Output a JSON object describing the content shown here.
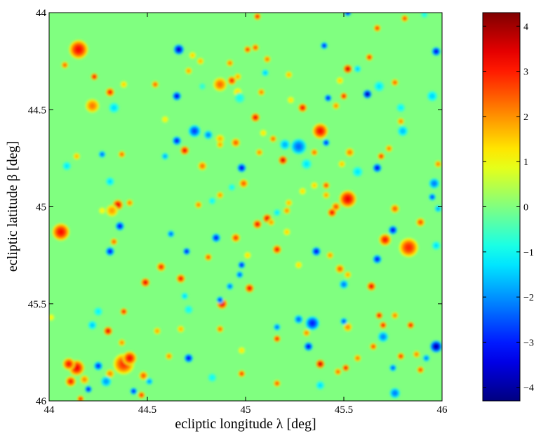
{
  "chart_data": {
    "type": "heatmap",
    "title": "",
    "xlabel": "ecliptic longitude λ [deg]",
    "ylabel": "ecliptic latitude β [deg]",
    "xlim": [
      44,
      46
    ],
    "ylim": [
      44,
      46
    ],
    "y_inverted": true,
    "x_ticks": [
      "44",
      "44.5",
      "45",
      "45.5",
      "46"
    ],
    "y_ticks": [
      "44",
      "44.5",
      "45",
      "45.5",
      "46"
    ],
    "background_value": 0,
    "colormap": "jet",
    "colorbar": {
      "range": [
        -4.3,
        4.3
      ],
      "ticks": [
        "4",
        "3",
        "2",
        "1",
        "0",
        "−1",
        "−2",
        "−3",
        "−4"
      ],
      "placement": "right"
    },
    "grid": false,
    "spots": [
      {
        "x": 44.15,
        "y": 44.19,
        "v": 3.3,
        "r": 0.055
      },
      {
        "x": 44.22,
        "y": 44.48,
        "v": 2.3,
        "r": 0.04
      },
      {
        "x": 44.31,
        "y": 44.41,
        "v": 3.2,
        "r": 0.025
      },
      {
        "x": 44.23,
        "y": 44.33,
        "v": 3.5,
        "r": 0.02
      },
      {
        "x": 44.08,
        "y": 44.27,
        "v": 2.6,
        "r": 0.02
      },
      {
        "x": 44.38,
        "y": 44.37,
        "v": 1.6,
        "r": 0.02
      },
      {
        "x": 44.33,
        "y": 44.49,
        "v": -1.4,
        "r": 0.03
      },
      {
        "x": 44.54,
        "y": 44.37,
        "v": 2.6,
        "r": 0.02
      },
      {
        "x": 44.59,
        "y": 44.55,
        "v": 1.3,
        "r": 0.02
      },
      {
        "x": 44.65,
        "y": 44.43,
        "v": -3.6,
        "r": 0.025
      },
      {
        "x": 44.66,
        "y": 44.19,
        "v": -3.8,
        "r": 0.03
      },
      {
        "x": 44.73,
        "y": 44.22,
        "v": 1.6,
        "r": 0.02
      },
      {
        "x": 44.77,
        "y": 44.25,
        "v": 1.8,
        "r": 0.02
      },
      {
        "x": 44.71,
        "y": 44.3,
        "v": 2.0,
        "r": 0.02
      },
      {
        "x": 44.78,
        "y": 44.38,
        "v": -0.8,
        "r": 0.02
      },
      {
        "x": 44.87,
        "y": 44.37,
        "v": 2.4,
        "r": 0.04
      },
      {
        "x": 44.93,
        "y": 44.35,
        "v": 3.1,
        "r": 0.025
      },
      {
        "x": 44.96,
        "y": 44.41,
        "v": 1.5,
        "r": 0.025
      },
      {
        "x": 44.97,
        "y": 44.44,
        "v": -1.0,
        "r": 0.03
      },
      {
        "x": 44.92,
        "y": 44.26,
        "v": 2.3,
        "r": 0.02
      },
      {
        "x": 44.96,
        "y": 44.33,
        "v": 1.9,
        "r": 0.02
      },
      {
        "x": 45.01,
        "y": 44.19,
        "v": 3.0,
        "r": 0.02
      },
      {
        "x": 45.05,
        "y": 44.18,
        "v": 2.8,
        "r": 0.02
      },
      {
        "x": 45.1,
        "y": 44.31,
        "v": -1.6,
        "r": 0.02
      },
      {
        "x": 45.08,
        "y": 44.41,
        "v": 2.3,
        "r": 0.02
      },
      {
        "x": 45.11,
        "y": 44.24,
        "v": 2.4,
        "r": 0.02
      },
      {
        "x": 45.22,
        "y": 44.32,
        "v": 1.8,
        "r": 0.02
      },
      {
        "x": 45.23,
        "y": 44.45,
        "v": 1.4,
        "r": 0.02
      },
      {
        "x": 45.29,
        "y": 44.49,
        "v": 3.4,
        "r": 0.025
      },
      {
        "x": 45.05,
        "y": 44.54,
        "v": 3.5,
        "r": 0.025
      },
      {
        "x": 45.09,
        "y": 44.62,
        "v": 1.4,
        "r": 0.02
      },
      {
        "x": 44.87,
        "y": 44.65,
        "v": 1.8,
        "r": 0.025
      },
      {
        "x": 44.95,
        "y": 44.67,
        "v": 2.6,
        "r": 0.025
      },
      {
        "x": 44.81,
        "y": 44.63,
        "v": -2.2,
        "r": 0.025
      },
      {
        "x": 44.74,
        "y": 44.61,
        "v": -2.8,
        "r": 0.035
      },
      {
        "x": 44.65,
        "y": 44.66,
        "v": -3.3,
        "r": 0.025
      },
      {
        "x": 44.69,
        "y": 44.71,
        "v": 3.5,
        "r": 0.025
      },
      {
        "x": 44.59,
        "y": 44.74,
        "v": -1.9,
        "r": 0.02
      },
      {
        "x": 44.78,
        "y": 44.79,
        "v": 2.4,
        "r": 0.025
      },
      {
        "x": 44.87,
        "y": 44.68,
        "v": 2.0,
        "r": 0.02
      },
      {
        "x": 44.98,
        "y": 44.8,
        "v": -3.6,
        "r": 0.025
      },
      {
        "x": 44.99,
        "y": 44.88,
        "v": 2.6,
        "r": 0.025
      },
      {
        "x": 44.93,
        "y": 44.9,
        "v": -1.1,
        "r": 0.02
      },
      {
        "x": 44.87,
        "y": 44.94,
        "v": 2.1,
        "r": 0.02
      },
      {
        "x": 44.83,
        "y": 44.97,
        "v": -1.2,
        "r": 0.02
      },
      {
        "x": 44.76,
        "y": 44.99,
        "v": 2.3,
        "r": 0.02
      },
      {
        "x": 45.07,
        "y": 44.72,
        "v": 2.2,
        "r": 0.02
      },
      {
        "x": 45.14,
        "y": 44.65,
        "v": 2.5,
        "r": 0.02
      },
      {
        "x": 45.19,
        "y": 44.76,
        "v": 3.7,
        "r": 0.025
      },
      {
        "x": 45.2,
        "y": 44.68,
        "v": -1.8,
        "r": 0.03
      },
      {
        "x": 45.27,
        "y": 44.69,
        "v": -2.4,
        "r": 0.045
      },
      {
        "x": 45.31,
        "y": 44.78,
        "v": -1.3,
        "r": 0.03
      },
      {
        "x": 45.35,
        "y": 44.72,
        "v": 2.5,
        "r": 0.02
      },
      {
        "x": 45.38,
        "y": 44.61,
        "v": 3.3,
        "r": 0.045
      },
      {
        "x": 45.41,
        "y": 44.67,
        "v": -3.2,
        "r": 0.02
      },
      {
        "x": 45.42,
        "y": 44.44,
        "v": -3.4,
        "r": 0.02
      },
      {
        "x": 45.5,
        "y": 44.43,
        "v": 3.3,
        "r": 0.02
      },
      {
        "x": 45.52,
        "y": 44.29,
        "v": 3.8,
        "r": 0.025
      },
      {
        "x": 45.48,
        "y": 44.35,
        "v": 1.6,
        "r": 0.02
      },
      {
        "x": 45.46,
        "y": 44.48,
        "v": 2.2,
        "r": 0.02
      },
      {
        "x": 45.4,
        "y": 44.17,
        "v": -3.2,
        "r": 0.02
      },
      {
        "x": 45.57,
        "y": 44.29,
        "v": -1.6,
        "r": 0.02
      },
      {
        "x": 45.62,
        "y": 44.42,
        "v": -4.0,
        "r": 0.025
      },
      {
        "x": 45.63,
        "y": 44.23,
        "v": 3.1,
        "r": 0.02
      },
      {
        "x": 45.68,
        "y": 44.38,
        "v": -1.3,
        "r": 0.03
      },
      {
        "x": 45.76,
        "y": 44.36,
        "v": 2.6,
        "r": 0.02
      },
      {
        "x": 45.79,
        "y": 44.49,
        "v": -1.2,
        "r": 0.025
      },
      {
        "x": 45.8,
        "y": 44.61,
        "v": -1.7,
        "r": 0.03
      },
      {
        "x": 45.95,
        "y": 44.43,
        "v": -1.5,
        "r": 0.03
      },
      {
        "x": 45.97,
        "y": 44.2,
        "v": -3.6,
        "r": 0.025
      },
      {
        "x": 45.91,
        "y": 44.01,
        "v": -1.0,
        "r": 0.02
      },
      {
        "x": 45.52,
        "y": 44.0,
        "v": -3.5,
        "r": 0.02
      },
      {
        "x": 45.06,
        "y": 44.02,
        "v": 3.2,
        "r": 0.02
      },
      {
        "x": 45.81,
        "y": 44.03,
        "v": 2.8,
        "r": 0.02
      },
      {
        "x": 45.67,
        "y": 44.08,
        "v": 3.0,
        "r": 0.02
      },
      {
        "x": 45.79,
        "y": 44.56,
        "v": 2.2,
        "r": 0.02
      },
      {
        "x": 45.73,
        "y": 44.7,
        "v": 2.3,
        "r": 0.02
      },
      {
        "x": 45.69,
        "y": 44.74,
        "v": 3.1,
        "r": 0.02
      },
      {
        "x": 45.67,
        "y": 44.8,
        "v": -3.6,
        "r": 0.025
      },
      {
        "x": 45.53,
        "y": 44.72,
        "v": 2.3,
        "r": 0.025
      },
      {
        "x": 45.57,
        "y": 44.82,
        "v": -1.3,
        "r": 0.03
      },
      {
        "x": 45.49,
        "y": 44.78,
        "v": 1.7,
        "r": 0.02
      },
      {
        "x": 45.41,
        "y": 44.89,
        "v": 2.9,
        "r": 0.02
      },
      {
        "x": 45.52,
        "y": 44.96,
        "v": 3.4,
        "r": 0.05
      },
      {
        "x": 45.46,
        "y": 45.0,
        "v": 2.7,
        "r": 0.025
      },
      {
        "x": 45.44,
        "y": 45.03,
        "v": 3.4,
        "r": 0.025
      },
      {
        "x": 45.41,
        "y": 44.94,
        "v": 2.0,
        "r": 0.02
      },
      {
        "x": 45.35,
        "y": 44.89,
        "v": 1.6,
        "r": 0.02
      },
      {
        "x": 45.29,
        "y": 44.92,
        "v": 1.5,
        "r": 0.02
      },
      {
        "x": 45.22,
        "y": 44.98,
        "v": 1.8,
        "r": 0.02
      },
      {
        "x": 45.21,
        "y": 45.02,
        "v": 2.2,
        "r": 0.02
      },
      {
        "x": 45.16,
        "y": 45.03,
        "v": -1.3,
        "r": 0.02
      },
      {
        "x": 45.11,
        "y": 45.06,
        "v": 3.6,
        "r": 0.025
      },
      {
        "x": 45.06,
        "y": 45.09,
        "v": 3.4,
        "r": 0.025
      },
      {
        "x": 45.13,
        "y": 45.08,
        "v": 2.1,
        "r": 0.02
      },
      {
        "x": 45.16,
        "y": 45.22,
        "v": 3.3,
        "r": 0.025
      },
      {
        "x": 45.21,
        "y": 45.13,
        "v": 1.6,
        "r": 0.02
      },
      {
        "x": 45.27,
        "y": 45.3,
        "v": 1.5,
        "r": 0.02
      },
      {
        "x": 45.36,
        "y": 45.23,
        "v": -3.5,
        "r": 0.025
      },
      {
        "x": 45.43,
        "y": 45.25,
        "v": 2.1,
        "r": 0.02
      },
      {
        "x": 45.48,
        "y": 45.32,
        "v": 2.6,
        "r": 0.025
      },
      {
        "x": 45.5,
        "y": 45.4,
        "v": -2.3,
        "r": 0.025
      },
      {
        "x": 45.52,
        "y": 45.35,
        "v": 1.9,
        "r": 0.02
      },
      {
        "x": 45.64,
        "y": 45.41,
        "v": 3.5,
        "r": 0.025
      },
      {
        "x": 45.67,
        "y": 45.27,
        "v": -3.3,
        "r": 0.025
      },
      {
        "x": 45.71,
        "y": 45.17,
        "v": 3.2,
        "r": 0.035
      },
      {
        "x": 45.75,
        "y": 45.12,
        "v": -3.5,
        "r": 0.025
      },
      {
        "x": 45.76,
        "y": 45.01,
        "v": 2.6,
        "r": 0.025
      },
      {
        "x": 45.83,
        "y": 45.21,
        "v": 3.0,
        "r": 0.055
      },
      {
        "x": 45.89,
        "y": 45.08,
        "v": 2.7,
        "r": 0.025
      },
      {
        "x": 45.97,
        "y": 45.2,
        "v": -1.4,
        "r": 0.025
      },
      {
        "x": 45.96,
        "y": 44.88,
        "v": -2.3,
        "r": 0.03
      },
      {
        "x": 45.95,
        "y": 44.95,
        "v": -2.9,
        "r": 0.02
      },
      {
        "x": 45.98,
        "y": 45.01,
        "v": -1.9,
        "r": 0.02
      },
      {
        "x": 45.98,
        "y": 44.78,
        "v": 2.3,
        "r": 0.02
      },
      {
        "x": 45.7,
        "y": 45.67,
        "v": -2.2,
        "r": 0.03
      },
      {
        "x": 45.7,
        "y": 45.61,
        "v": 3.3,
        "r": 0.02
      },
      {
        "x": 45.65,
        "y": 45.72,
        "v": 2.8,
        "r": 0.02
      },
      {
        "x": 45.52,
        "y": 45.62,
        "v": 2.2,
        "r": 0.025
      },
      {
        "x": 45.5,
        "y": 45.59,
        "v": -2.7,
        "r": 0.02
      },
      {
        "x": 45.57,
        "y": 45.78,
        "v": 2.4,
        "r": 0.02
      },
      {
        "x": 45.68,
        "y": 45.56,
        "v": 3.5,
        "r": 0.02
      },
      {
        "x": 45.76,
        "y": 45.56,
        "v": 2.3,
        "r": 0.02
      },
      {
        "x": 45.84,
        "y": 45.61,
        "v": 3.4,
        "r": 0.02
      },
      {
        "x": 45.79,
        "y": 45.77,
        "v": 3.1,
        "r": 0.02
      },
      {
        "x": 45.75,
        "y": 45.83,
        "v": -2.6,
        "r": 0.02
      },
      {
        "x": 45.87,
        "y": 45.76,
        "v": 2.3,
        "r": 0.02
      },
      {
        "x": 45.89,
        "y": 45.84,
        "v": 2.8,
        "r": 0.02
      },
      {
        "x": 45.97,
        "y": 45.72,
        "v": -4.0,
        "r": 0.035
      },
      {
        "x": 45.92,
        "y": 45.78,
        "v": -2.3,
        "r": 0.02
      },
      {
        "x": 45.76,
        "y": 45.96,
        "v": -2.3,
        "r": 0.03
      },
      {
        "x": 45.51,
        "y": 45.83,
        "v": 3.4,
        "r": 0.02
      },
      {
        "x": 45.47,
        "y": 45.85,
        "v": 2.5,
        "r": 0.02
      },
      {
        "x": 45.38,
        "y": 45.81,
        "v": 3.8,
        "r": 0.025
      },
      {
        "x": 45.32,
        "y": 45.72,
        "v": -3.5,
        "r": 0.025
      },
      {
        "x": 45.31,
        "y": 45.65,
        "v": 2.3,
        "r": 0.02
      },
      {
        "x": 45.34,
        "y": 45.6,
        "v": -3.1,
        "r": 0.04
      },
      {
        "x": 45.27,
        "y": 45.58,
        "v": -2.5,
        "r": 0.025
      },
      {
        "x": 45.16,
        "y": 45.62,
        "v": -2.4,
        "r": 0.02
      },
      {
        "x": 45.16,
        "y": 45.68,
        "v": 3.3,
        "r": 0.02
      },
      {
        "x": 45.16,
        "y": 45.91,
        "v": 2.7,
        "r": 0.02
      },
      {
        "x": 45.38,
        "y": 45.92,
        "v": -1.4,
        "r": 0.025
      },
      {
        "x": 44.98,
        "y": 45.74,
        "v": 1.4,
        "r": 0.02
      },
      {
        "x": 44.98,
        "y": 45.86,
        "v": 3.0,
        "r": 0.02
      },
      {
        "x": 44.83,
        "y": 45.88,
        "v": -1.1,
        "r": 0.025
      },
      {
        "x": 44.87,
        "y": 45.63,
        "v": 2.5,
        "r": 0.02
      },
      {
        "x": 44.88,
        "y": 45.5,
        "v": 3.6,
        "r": 0.03
      },
      {
        "x": 44.87,
        "y": 45.48,
        "v": -3.0,
        "r": 0.02
      },
      {
        "x": 44.92,
        "y": 45.41,
        "v": -2.4,
        "r": 0.02
      },
      {
        "x": 44.97,
        "y": 45.35,
        "v": -2.6,
        "r": 0.02
      },
      {
        "x": 45.02,
        "y": 45.42,
        "v": 3.5,
        "r": 0.025
      },
      {
        "x": 44.98,
        "y": 45.3,
        "v": -3.4,
        "r": 0.02
      },
      {
        "x": 45.01,
        "y": 45.25,
        "v": 1.5,
        "r": 0.02
      },
      {
        "x": 44.95,
        "y": 45.16,
        "v": 2.9,
        "r": 0.025
      },
      {
        "x": 44.85,
        "y": 45.16,
        "v": -3.2,
        "r": 0.025
      },
      {
        "x": 44.81,
        "y": 45.26,
        "v": 2.8,
        "r": 0.02
      },
      {
        "x": 44.7,
        "y": 45.23,
        "v": -3.5,
        "r": 0.02
      },
      {
        "x": 44.62,
        "y": 45.14,
        "v": -2.5,
        "r": 0.02
      },
      {
        "x": 44.57,
        "y": 45.31,
        "v": 3.1,
        "r": 0.025
      },
      {
        "x": 44.67,
        "y": 45.37,
        "v": 3.3,
        "r": 0.025
      },
      {
        "x": 44.69,
        "y": 45.46,
        "v": -1.5,
        "r": 0.02
      },
      {
        "x": 44.71,
        "y": 45.53,
        "v": -1.1,
        "r": 0.025
      },
      {
        "x": 44.67,
        "y": 45.63,
        "v": 1.8,
        "r": 0.02
      },
      {
        "x": 44.61,
        "y": 45.77,
        "v": 2.2,
        "r": 0.02
      },
      {
        "x": 44.71,
        "y": 45.78,
        "v": -3.5,
        "r": 0.025
      },
      {
        "x": 44.55,
        "y": 45.64,
        "v": 2.0,
        "r": 0.02
      },
      {
        "x": 44.48,
        "y": 45.87,
        "v": 2.6,
        "r": 0.025
      },
      {
        "x": 44.51,
        "y": 45.9,
        "v": -2.0,
        "r": 0.02
      },
      {
        "x": 44.38,
        "y": 45.81,
        "v": 2.9,
        "r": 0.06
      },
      {
        "x": 44.41,
        "y": 45.78,
        "v": 3.3,
        "r": 0.04
      },
      {
        "x": 44.31,
        "y": 45.86,
        "v": 2.2,
        "r": 0.025
      },
      {
        "x": 44.25,
        "y": 45.82,
        "v": -3.0,
        "r": 0.025
      },
      {
        "x": 44.3,
        "y": 45.64,
        "v": 3.6,
        "r": 0.025
      },
      {
        "x": 44.22,
        "y": 45.61,
        "v": -1.6,
        "r": 0.025
      },
      {
        "x": 44.25,
        "y": 45.54,
        "v": -1.2,
        "r": 0.025
      },
      {
        "x": 44.38,
        "y": 45.54,
        "v": 3.3,
        "r": 0.02
      },
      {
        "x": 44.37,
        "y": 45.7,
        "v": 2.2,
        "r": 0.02
      },
      {
        "x": 44.14,
        "y": 45.83,
        "v": 3.4,
        "r": 0.045
      },
      {
        "x": 44.1,
        "y": 45.81,
        "v": 3.2,
        "r": 0.035
      },
      {
        "x": 44.11,
        "y": 45.9,
        "v": 3.1,
        "r": 0.03
      },
      {
        "x": 44.18,
        "y": 45.89,
        "v": 2.2,
        "r": 0.025
      },
      {
        "x": 44.29,
        "y": 45.9,
        "v": -2.0,
        "r": 0.03
      },
      {
        "x": 44.2,
        "y": 45.94,
        "v": -3.4,
        "r": 0.02
      },
      {
        "x": 44.16,
        "y": 45.99,
        "v": 3.1,
        "r": 0.02
      },
      {
        "x": 44.43,
        "y": 45.95,
        "v": -3.2,
        "r": 0.02
      },
      {
        "x": 44.47,
        "y": 45.97,
        "v": 3.1,
        "r": 0.02
      },
      {
        "x": 44.01,
        "y": 45.57,
        "v": 1.2,
        "r": 0.02
      },
      {
        "x": 44.06,
        "y": 45.13,
        "v": 3.3,
        "r": 0.05
      },
      {
        "x": 44.35,
        "y": 44.99,
        "v": 3.5,
        "r": 0.03
      },
      {
        "x": 44.32,
        "y": 45.02,
        "v": 2.0,
        "r": 0.035
      },
      {
        "x": 44.41,
        "y": 44.98,
        "v": 2.3,
        "r": 0.02
      },
      {
        "x": 44.36,
        "y": 45.1,
        "v": -3.4,
        "r": 0.025
      },
      {
        "x": 44.33,
        "y": 45.18,
        "v": 2.6,
        "r": 0.02
      },
      {
        "x": 44.31,
        "y": 45.23,
        "v": -3.3,
        "r": 0.025
      },
      {
        "x": 44.31,
        "y": 44.87,
        "v": -1.4,
        "r": 0.025
      },
      {
        "x": 44.27,
        "y": 44.73,
        "v": -2.5,
        "r": 0.02
      },
      {
        "x": 44.14,
        "y": 44.74,
        "v": 1.8,
        "r": 0.02
      },
      {
        "x": 44.09,
        "y": 44.79,
        "v": -1.3,
        "r": 0.025
      },
      {
        "x": 44.37,
        "y": 44.73,
        "v": 2.5,
        "r": 0.02
      },
      {
        "x": 44.49,
        "y": 45.39,
        "v": 3.6,
        "r": 0.025
      },
      {
        "x": 44.27,
        "y": 45.02,
        "v": 1.2,
        "r": 0.02
      }
    ]
  }
}
